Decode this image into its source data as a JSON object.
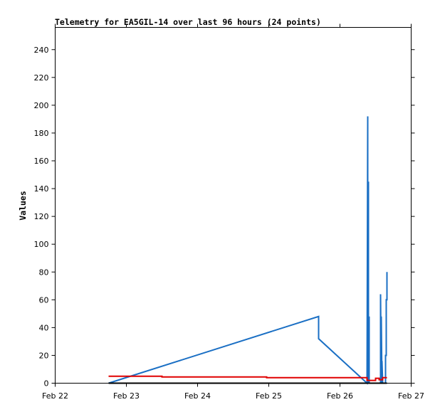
{
  "chart_data": {
    "type": "line",
    "title": "Telemetry for EA5GIL-14 over last 96 hours (24 points)",
    "xlabel": "",
    "ylabel": "Values",
    "x_ticks": [
      "Feb 22",
      "Feb 23",
      "Feb 24",
      "Feb 25",
      "Feb 26",
      "Feb 27"
    ],
    "x_range_days": [
      0,
      5
    ],
    "y_ticks": [
      0,
      20,
      40,
      60,
      80,
      100,
      120,
      140,
      160,
      180,
      200,
      220,
      240
    ],
    "ylim": [
      0,
      256
    ],
    "grid": false,
    "colors": {
      "series_blue": "#1a6fc4",
      "series_red": "#e00000",
      "series_black": "#000000",
      "axis": "#000000"
    },
    "series": [
      {
        "color": "#1a6fc4",
        "points": [
          [
            0.75,
            0
          ],
          [
            3.7,
            48
          ],
          [
            3.7,
            32
          ],
          [
            4.38,
            0
          ],
          [
            4.39,
            192
          ],
          [
            4.39,
            0
          ],
          [
            4.4,
            145
          ],
          [
            4.4,
            0
          ],
          [
            4.41,
            48
          ],
          [
            4.41,
            0
          ],
          [
            4.57,
            0
          ],
          [
            4.57,
            64
          ],
          [
            4.58,
            0
          ],
          [
            4.58,
            48
          ],
          [
            4.59,
            0
          ],
          [
            4.59,
            16
          ],
          [
            4.6,
            0
          ],
          [
            4.64,
            0
          ],
          [
            4.64,
            20
          ],
          [
            4.65,
            20
          ],
          [
            4.65,
            60
          ],
          [
            4.66,
            60
          ],
          [
            4.66,
            80
          ]
        ]
      },
      {
        "color": "#e00000",
        "points": [
          [
            0.75,
            5
          ],
          [
            1.5,
            5
          ],
          [
            1.5,
            4.5
          ],
          [
            2.97,
            4.5
          ],
          [
            2.97,
            4
          ],
          [
            4.38,
            4
          ],
          [
            4.38,
            2
          ],
          [
            4.5,
            2
          ],
          [
            4.5,
            3.5
          ],
          [
            4.55,
            3.5
          ],
          [
            4.55,
            2.5
          ],
          [
            4.6,
            2.5
          ],
          [
            4.6,
            4
          ],
          [
            4.66,
            4
          ]
        ]
      },
      {
        "color": "#000000",
        "points": [
          [
            0.75,
            0
          ],
          [
            4.66,
            0
          ]
        ]
      }
    ]
  }
}
